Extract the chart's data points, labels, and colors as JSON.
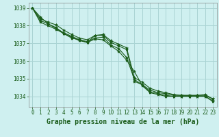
{
  "title": "Graphe pression niveau de la mer (hPa)",
  "background_color": "#cff0f0",
  "grid_color": "#aad4d4",
  "line_color": "#1a5c1a",
  "axis_color": "#888888",
  "x_ticks": [
    0,
    1,
    2,
    3,
    4,
    5,
    6,
    7,
    8,
    9,
    10,
    11,
    12,
    13,
    14,
    15,
    16,
    17,
    18,
    19,
    20,
    21,
    22,
    23
  ],
  "y_ticks": [
    1034,
    1035,
    1036,
    1037,
    1038,
    1039
  ],
  "ylim": [
    1033.4,
    1039.3
  ],
  "xlim": [
    -0.5,
    23.5
  ],
  "series": [
    [
      1039.0,
      1038.5,
      1038.1,
      1037.9,
      1037.55,
      1037.35,
      1037.15,
      1037.05,
      1037.45,
      1037.45,
      1037.05,
      1036.85,
      1036.65,
      1034.85,
      1034.65,
      1034.35,
      1034.2,
      1034.15,
      1034.05,
      1034.05,
      1034.05,
      1034.05,
      1034.05,
      1033.85
    ],
    [
      1039.0,
      1038.3,
      1038.1,
      1037.85,
      1037.6,
      1037.4,
      1037.2,
      1037.1,
      1037.3,
      1037.35,
      1036.9,
      1036.7,
      1036.2,
      1034.95,
      1034.65,
      1034.25,
      1034.15,
      1034.05,
      1034.0,
      1034.0,
      1034.0,
      1034.0,
      1034.0,
      1033.75
    ],
    [
      1039.0,
      1038.2,
      1038.0,
      1037.8,
      1037.55,
      1037.3,
      1037.2,
      1037.05,
      1037.25,
      1037.2,
      1036.85,
      1036.55,
      1036.05,
      1035.4,
      1034.6,
      1034.2,
      1034.1,
      1034.0,
      1034.0,
      1034.0,
      1034.0,
      1034.0,
      1034.0,
      1033.7
    ],
    [
      1039.0,
      1038.4,
      1038.2,
      1038.05,
      1037.75,
      1037.5,
      1037.3,
      1037.2,
      1037.45,
      1037.5,
      1037.15,
      1036.95,
      1036.75,
      1035.05,
      1034.8,
      1034.45,
      1034.3,
      1034.2,
      1034.1,
      1034.05,
      1034.05,
      1034.05,
      1034.1,
      1033.85
    ]
  ],
  "marker": "*",
  "markersize": 3,
  "linewidth": 0.8,
  "title_fontsize": 7,
  "tick_fontsize": 5.5
}
